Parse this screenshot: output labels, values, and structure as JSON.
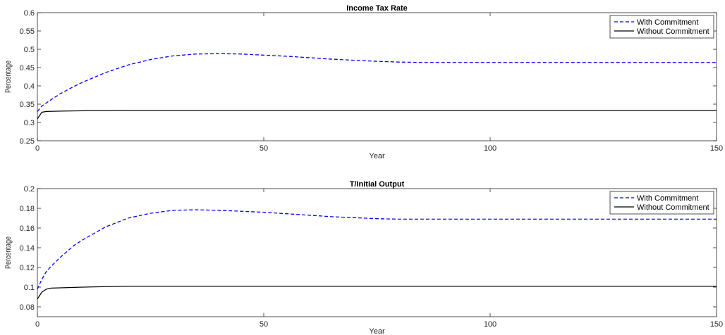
{
  "chart_data": [
    {
      "type": "line",
      "title": "Income Tax Rate",
      "xlabel": "Year",
      "ylabel": "Percentage",
      "xlim": [
        0,
        150
      ],
      "ylim": [
        0.25,
        0.6
      ],
      "xticks": [
        0,
        50,
        100,
        150
      ],
      "yticks": [
        0.25,
        0.3,
        0.35,
        0.4,
        0.45,
        0.5,
        0.55,
        0.6
      ],
      "ytick_labels": [
        "0.25",
        "0.3",
        "0.35",
        "0.4",
        "0.45",
        "0.5",
        "0.55",
        "0.6"
      ],
      "grid": false,
      "legend": "top-right",
      "series": [
        {
          "name": "With Commitment",
          "color": "#0000ff",
          "style": "dashed",
          "x": [
            0,
            1,
            3,
            5,
            8,
            10,
            15,
            20,
            25,
            30,
            35,
            40,
            45,
            50,
            55,
            60,
            65,
            70,
            75,
            80,
            85,
            90,
            100,
            110,
            120,
            130,
            140,
            150
          ],
          "y": [
            0.33,
            0.345,
            0.362,
            0.378,
            0.398,
            0.41,
            0.436,
            0.457,
            0.472,
            0.482,
            0.487,
            0.488,
            0.487,
            0.484,
            0.481,
            0.477,
            0.473,
            0.47,
            0.467,
            0.465,
            0.464,
            0.464,
            0.464,
            0.464,
            0.464,
            0.464,
            0.464,
            0.464
          ]
        },
        {
          "name": "Without Commitment",
          "color": "#000000",
          "style": "solid",
          "x": [
            0,
            1,
            2,
            5,
            10,
            20,
            30,
            50,
            100,
            150
          ],
          "y": [
            0.31,
            0.328,
            0.33,
            0.331,
            0.332,
            0.333,
            0.333,
            0.333,
            0.333,
            0.333
          ]
        }
      ]
    },
    {
      "type": "line",
      "title": "T/Initial Output",
      "xlabel": "Year",
      "ylabel": "Percentage",
      "xlim": [
        0,
        150
      ],
      "ylim": [
        0.07,
        0.2
      ],
      "xticks": [
        0,
        50,
        100,
        150
      ],
      "yticks": [
        0.08,
        0.1,
        0.12,
        0.14,
        0.16,
        0.18,
        0.2
      ],
      "ytick_labels": [
        "0.08",
        "0.1",
        "0.12",
        "0.14",
        "0.16",
        "0.18",
        "0.2"
      ],
      "grid": false,
      "legend": "top-right",
      "series": [
        {
          "name": "With Commitment",
          "color": "#0000ff",
          "style": "dashed",
          "x": [
            0,
            1,
            2,
            3,
            5,
            8,
            10,
            15,
            20,
            25,
            30,
            35,
            40,
            45,
            50,
            55,
            60,
            65,
            70,
            75,
            80,
            85,
            90,
            100,
            110,
            120,
            130,
            140,
            150
          ],
          "y": [
            0.098,
            0.108,
            0.116,
            0.121,
            0.13,
            0.142,
            0.148,
            0.161,
            0.17,
            0.175,
            0.178,
            0.1785,
            0.178,
            0.177,
            0.176,
            0.1745,
            0.173,
            0.1715,
            0.1705,
            0.1695,
            0.169,
            0.169,
            0.169,
            0.169,
            0.169,
            0.169,
            0.169,
            0.169,
            0.169
          ]
        },
        {
          "name": "Without Commitment",
          "color": "#000000",
          "style": "solid",
          "x": [
            0,
            1,
            2,
            3,
            5,
            10,
            20,
            30,
            50,
            100,
            150
          ],
          "y": [
            0.088,
            0.095,
            0.098,
            0.099,
            0.0993,
            0.1,
            0.101,
            0.101,
            0.101,
            0.101,
            0.101
          ]
        }
      ]
    }
  ]
}
